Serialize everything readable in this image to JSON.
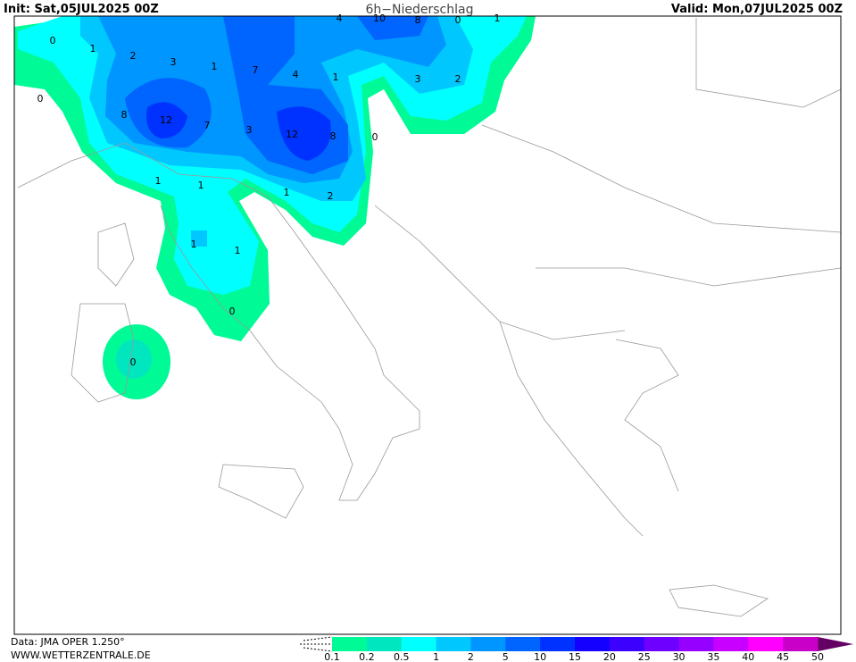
{
  "header": {
    "init": "Init: Sat,05JUL2025 00Z",
    "title": "6h−Niederschlag",
    "valid": "Valid: Mon,07JUL2025 00Z"
  },
  "footer": {
    "source": "Data: JMA OPER 1.250°",
    "website": "WWW.WETTERZENTRALE.DE"
  },
  "legend": {
    "labels": [
      0.1,
      0.2,
      0.5,
      1,
      2,
      5,
      10,
      15,
      20,
      25,
      30,
      35,
      40,
      45,
      50
    ],
    "colors": [
      "#00fa96",
      "#00e6be",
      "#00ffff",
      "#00c8ff",
      "#0096ff",
      "#0064ff",
      "#0032ff",
      "#1400ff",
      "#3c00ff",
      "#6e00ff",
      "#9600ff",
      "#c800ff",
      "#ff00ff",
      "#c800c8"
    ]
  },
  "map": {
    "contour_labels": [
      "0",
      "1",
      "2",
      "3",
      "1",
      "7",
      "4",
      "1",
      "3",
      "2",
      "0",
      "8",
      "12",
      "7",
      "3",
      "12",
      "8",
      "0",
      "1",
      "1",
      "1",
      "2",
      "1",
      "1",
      "0",
      "0",
      "4",
      "10",
      "8",
      "0",
      "1"
    ]
  }
}
